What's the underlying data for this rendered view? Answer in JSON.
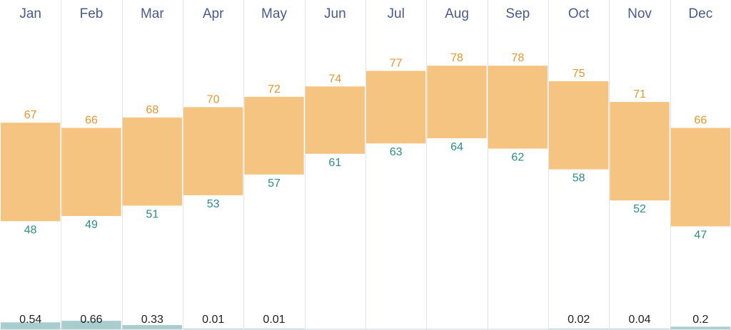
{
  "chart_data": {
    "type": "bar",
    "subtype": "floating-range",
    "categories": [
      "Jan",
      "Feb",
      "Mar",
      "Apr",
      "May",
      "Jun",
      "Jul",
      "Aug",
      "Sep",
      "Oct",
      "Nov",
      "Dec"
    ],
    "series": [
      {
        "values": [
          67,
          66,
          68,
          70,
          72,
          74,
          77,
          78,
          78,
          75,
          71,
          66
        ]
      },
      {
        "values": [
          48,
          49,
          51,
          53,
          57,
          61,
          63,
          64,
          62,
          58,
          52,
          47
        ]
      },
      {
        "values": [
          0.54,
          0.66,
          0.33,
          0.01,
          0.01,
          0,
          0,
          0,
          0,
          0.02,
          0.04,
          0.2
        ]
      }
    ],
    "precip_shown": [
      true,
      true,
      true,
      true,
      true,
      false,
      false,
      false,
      false,
      true,
      true,
      true
    ],
    "temp_ylim": [
      27,
      86
    ],
    "precip_ylim": [
      0,
      6
    ],
    "grid": true,
    "legend": "none"
  },
  "colors": {
    "temp_bar": "#f5c481",
    "high_text": "#e5962e",
    "low_text": "#2e8a8c",
    "precip_bar": "#a9cdcf",
    "precip_text": "#222222",
    "month_text": "#4a5a8a",
    "gridline": "#dfe4ea"
  }
}
